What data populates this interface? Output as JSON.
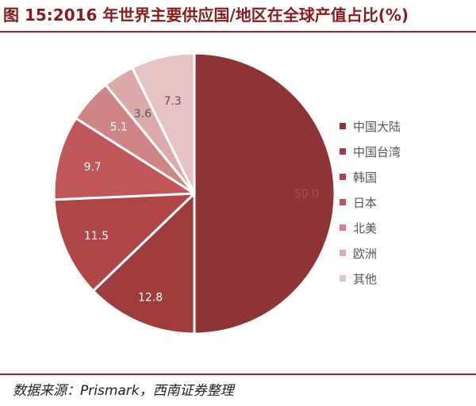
{
  "header": {
    "title": "图 15:2016 年世界主要供应国/地区在全球产值占比(%)"
  },
  "footer": {
    "source": "数据来源：Prismark，西南证券整理"
  },
  "chart_data": {
    "type": "pie",
    "title": "2016 年世界主要供应国/地区在全球产值占比(%)",
    "categories": [
      "中国大陆",
      "中国台湾",
      "韩国",
      "日本",
      "北美",
      "欧洲",
      "其他"
    ],
    "values": [
      50.0,
      12.8,
      11.5,
      9.7,
      5.1,
      3.6,
      7.3
    ],
    "value_labels": [
      "50.0",
      "12.8",
      "11.5",
      "9.7",
      "5.1",
      "3.6",
      "7.3"
    ],
    "colors": [
      "#8e3435",
      "#9e3b3c",
      "#b04547",
      "#c0565a",
      "#cf8585",
      "#ddaaaa",
      "#e7c4c4"
    ],
    "legend_position": "right",
    "start_angle": "12 o'clock",
    "direction": "clockwise"
  }
}
